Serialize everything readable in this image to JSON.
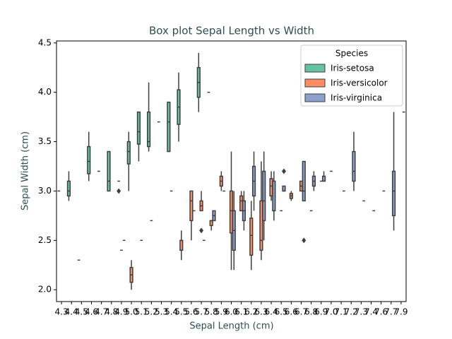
{
  "chart_data": {
    "type": "box",
    "title": "Box plot Sepal Length vs Width",
    "x_label": "Sepal Length (cm)",
    "y_label": "Sepal Width (cm)",
    "categories": [
      "4.3",
      "4.4",
      "4.5",
      "4.6",
      "4.7",
      "4.8",
      "4.9",
      "5.0",
      "5.1",
      "5.2",
      "5.3",
      "5.4",
      "5.5",
      "5.6",
      "5.7",
      "5.8",
      "5.9",
      "6.0",
      "6.1",
      "6.2",
      "6.3",
      "6.4",
      "6.5",
      "6.6",
      "6.7",
      "6.8",
      "6.9",
      "7.0",
      "7.1",
      "7.2",
      "7.3",
      "7.4",
      "7.6",
      "7.7",
      "7.9"
    ],
    "ylim": [
      1.88,
      4.52
    ],
    "yticks": [
      {
        "value": 2.0,
        "label": "2.0"
      },
      {
        "value": 2.5,
        "label": "2.5"
      },
      {
        "value": 3.0,
        "label": "3.0"
      },
      {
        "value": 3.5,
        "label": "3.5"
      },
      {
        "value": 4.0,
        "label": "4.0"
      },
      {
        "value": 4.5,
        "label": "4.5"
      }
    ],
    "legend_title": "Species",
    "legend_position": "upper right",
    "series": [
      {
        "name": "Iris-setosa",
        "color": "#66c2a5",
        "values": [
          [
            3.0,
            3.0,
            3.0,
            3.0,
            3.0
          ],
          [
            2.9,
            2.95,
            3.0,
            3.1,
            3.2
          ],
          [
            2.3,
            2.3,
            2.3,
            2.3,
            2.3
          ],
          [
            3.1,
            3.175,
            3.3,
            3.45,
            3.6
          ],
          [
            3.2,
            3.2,
            3.2,
            3.2,
            3.2
          ],
          [
            3.0,
            3.0,
            3.1,
            3.4,
            3.4
          ],
          [
            3.1,
            3.1,
            3.1,
            3.1,
            3.1
          ],
          [
            3.0,
            3.275,
            3.4,
            3.5,
            3.6
          ],
          [
            3.3,
            3.475,
            3.6,
            3.8,
            3.8
          ],
          [
            3.4,
            3.45,
            3.5,
            3.8,
            4.1
          ],
          [
            3.7,
            3.7,
            3.7,
            3.7,
            3.7
          ],
          [
            3.4,
            3.4,
            3.7,
            3.9,
            3.9
          ],
          [
            3.5,
            3.675,
            3.85,
            4.025,
            4.2
          ],
          null,
          [
            3.8,
            3.95,
            4.1,
            4.25,
            4.4
          ],
          [
            4.0,
            4.0,
            4.0,
            4.0,
            4.0
          ],
          null,
          null,
          null,
          null,
          null,
          null,
          null,
          null,
          null,
          null,
          null,
          null,
          null,
          null,
          null,
          null,
          null,
          null,
          null
        ],
        "outliers": [
          null,
          null,
          null,
          null,
          null,
          null,
          [
            3.0
          ],
          null,
          null,
          null,
          null,
          null,
          null,
          null,
          null,
          null,
          null,
          null,
          null,
          null,
          null,
          null,
          null,
          null,
          null,
          null,
          null,
          null,
          null,
          null,
          null,
          null,
          null,
          null,
          null
        ]
      },
      {
        "name": "Iris-versicolor",
        "color": "#fc8d62",
        "values": [
          null,
          null,
          null,
          null,
          null,
          null,
          [
            2.4,
            2.4,
            2.4,
            2.4,
            2.4
          ],
          [
            2.0,
            2.075,
            2.15,
            2.225,
            2.3
          ],
          [
            2.5,
            2.5,
            2.5,
            2.5,
            2.5
          ],
          [
            2.7,
            2.7,
            2.7,
            2.7,
            2.7
          ],
          null,
          [
            3.0,
            3.0,
            3.0,
            3.0,
            3.0
          ],
          [
            2.3,
            2.4,
            2.4,
            2.5,
            2.6
          ],
          [
            2.5,
            2.7,
            2.9,
            3.0,
            3.0
          ],
          [
            2.8,
            2.8,
            2.85,
            2.9,
            3.0
          ],
          [
            2.6,
            2.65,
            2.7,
            2.7,
            2.7
          ],
          [
            3.0,
            3.05,
            3.1,
            3.15,
            3.2
          ],
          [
            2.2,
            2.575,
            2.8,
            3.0,
            3.4
          ],
          [
            2.8,
            2.8,
            2.9,
            2.95,
            3.0
          ],
          [
            2.2,
            2.35,
            2.55,
            2.725,
            2.9
          ],
          [
            2.3,
            2.4,
            2.5,
            2.9,
            3.3
          ],
          [
            2.9,
            2.95,
            3.05,
            3.125,
            3.2
          ],
          [
            2.8,
            2.8,
            2.8,
            2.8,
            2.8
          ],
          [
            2.9,
            2.925,
            2.95,
            2.975,
            3.0
          ],
          [
            3.0,
            3.0,
            3.05,
            3.1,
            3.1
          ],
          [
            2.8,
            2.8,
            2.8,
            2.8,
            2.8
          ],
          [
            3.1,
            3.1,
            3.1,
            3.1,
            3.1
          ],
          [
            3.2,
            3.2,
            3.2,
            3.2,
            3.2
          ],
          null,
          null,
          null,
          null,
          null,
          null,
          null
        ],
        "outliers": [
          null,
          null,
          null,
          null,
          null,
          null,
          null,
          null,
          null,
          null,
          null,
          null,
          null,
          null,
          [
            2.6
          ],
          null,
          null,
          null,
          null,
          null,
          null,
          null,
          null,
          null,
          null,
          null,
          null,
          null,
          null,
          null,
          null,
          null,
          null,
          null,
          null
        ]
      },
      {
        "name": "Iris-virginica",
        "color": "#8da0cb",
        "values": [
          null,
          null,
          null,
          null,
          null,
          null,
          [
            2.5,
            2.5,
            2.5,
            2.5,
            2.5
          ],
          null,
          null,
          null,
          null,
          null,
          null,
          [
            2.8,
            2.8,
            2.8,
            2.8,
            2.8
          ],
          [
            2.5,
            2.5,
            2.5,
            2.5,
            2.5
          ],
          [
            2.7,
            2.7,
            2.75,
            2.8,
            2.8
          ],
          [
            3.0,
            3.0,
            3.0,
            3.0,
            3.0
          ],
          [
            2.2,
            2.4,
            2.6,
            2.8,
            3.0
          ],
          [
            2.6,
            2.7,
            2.8,
            2.9,
            3.0
          ],
          [
            2.8,
            2.95,
            3.1,
            3.25,
            3.4
          ],
          [
            2.5,
            2.7,
            2.9,
            3.2,
            3.4
          ],
          [
            2.7,
            2.8,
            2.8,
            3.1,
            3.2
          ],
          [
            3.0,
            3.0,
            3.0,
            3.05,
            3.05
          ],
          null,
          [
            2.9,
            2.9,
            3.0,
            3.3,
            3.3
          ],
          [
            3.0,
            3.05,
            3.1,
            3.15,
            3.2
          ],
          [
            3.1,
            3.1,
            3.1,
            3.15,
            3.2
          ],
          null,
          [
            3.0,
            3.0,
            3.0,
            3.0,
            3.0
          ],
          [
            3.0,
            3.1,
            3.2,
            3.4,
            3.6
          ],
          [
            2.9,
            2.9,
            2.9,
            2.9,
            2.9
          ],
          [
            2.8,
            2.8,
            2.8,
            2.8,
            2.8
          ],
          [
            3.0,
            3.0,
            3.0,
            3.0,
            3.0
          ],
          [
            2.6,
            2.75,
            3.0,
            3.2,
            3.8
          ],
          [
            3.8,
            3.8,
            3.8,
            3.8,
            3.8
          ]
        ],
        "outliers": [
          null,
          null,
          null,
          null,
          null,
          null,
          null,
          null,
          null,
          null,
          null,
          null,
          null,
          null,
          null,
          null,
          null,
          null,
          null,
          null,
          null,
          null,
          [
            3.2
          ],
          null,
          [
            2.5
          ],
          null,
          null,
          null,
          null,
          null,
          null,
          null,
          null,
          null,
          null
        ]
      }
    ]
  }
}
